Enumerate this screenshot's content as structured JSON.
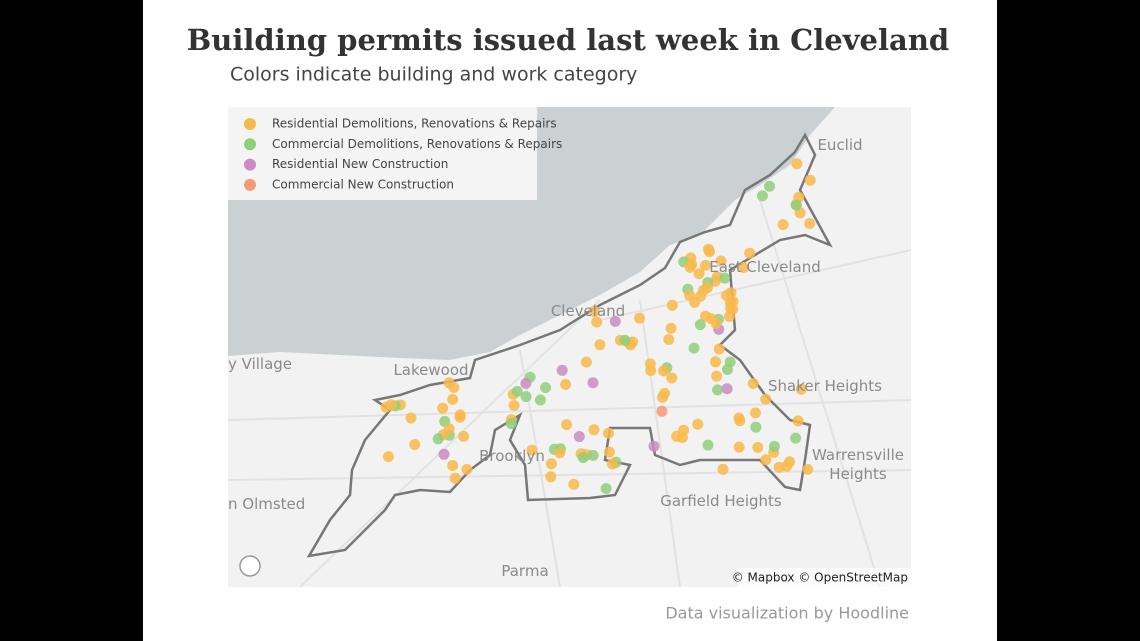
{
  "header": {
    "title": "Building permits issued last week in Cleveland",
    "subtitle": "Colors indicate building and work category"
  },
  "legend": [
    {
      "label": "Residential Demolitions, Renovations & Repairs",
      "color": "#f9b84a"
    },
    {
      "label": "Commercial Demolitions, Renovations & Repairs",
      "color": "#8fcf7a"
    },
    {
      "label": "Residential New Construction",
      "color": "#c98cc4"
    },
    {
      "label": "Commercial New Construction",
      "color": "#f59a78"
    }
  ],
  "places": [
    "Euclid",
    "East Cleveland",
    "Cleveland",
    "y Village",
    "Lakewood",
    "Shaker Heights",
    "Warrensville",
    "Heights",
    "Brooklyn",
    "Garfield Heights",
    "n Olmsted",
    "Parma"
  ],
  "attribution": "© Mapbox © OpenStreetMap",
  "credit": "Data visualization by Hoodline"
}
